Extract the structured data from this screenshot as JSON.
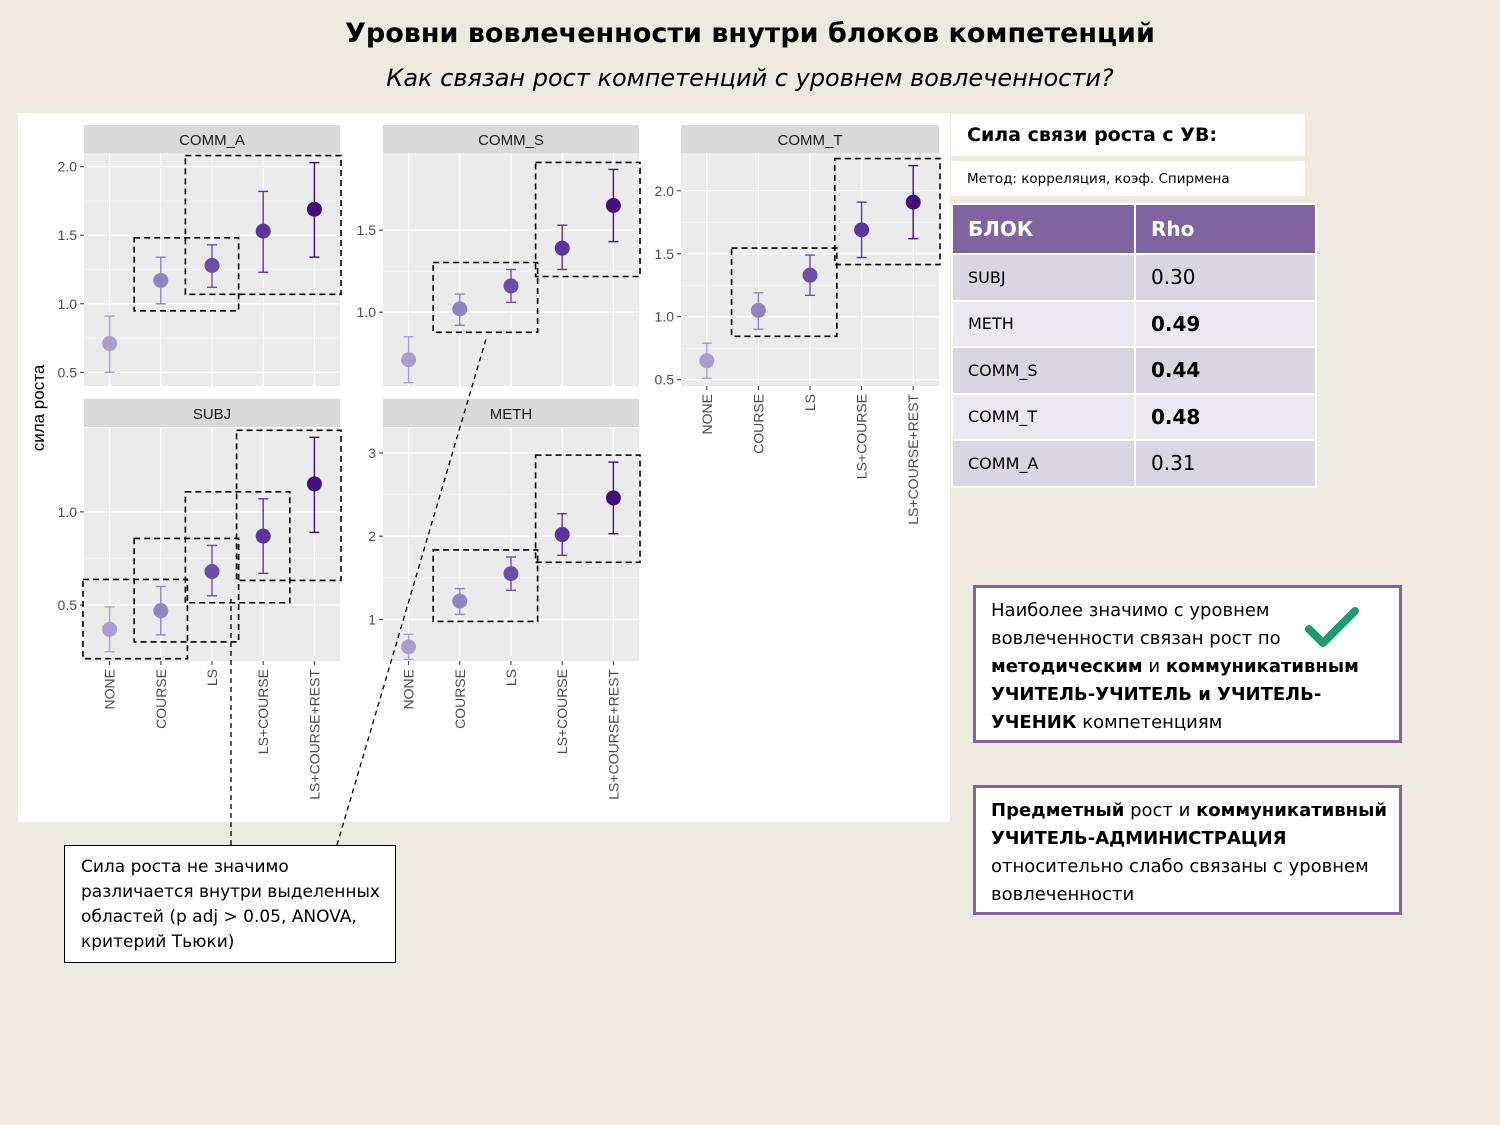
{
  "title": "Уровни вовлеченности внутри блоков компетенций",
  "subtitle": "Как связан рост компетенций с уровнем вовлеченности?",
  "correlation": {
    "title": "Сила связи роста с УВ:",
    "method": "Метод:  корреляция, коэф. Спирмена",
    "table_headers": [
      "БЛОК",
      "Rho"
    ],
    "rows": [
      {
        "block": "SUBJ",
        "rho": "0.30",
        "bold": false
      },
      {
        "block": "METH",
        "rho": "0.49",
        "bold": true
      },
      {
        "block": "COMM_S",
        "rho": "0.44",
        "bold": true
      },
      {
        "block": "COMM_T",
        "rho": "0.48",
        "bold": true
      },
      {
        "block": "COMM_A",
        "rho": "0.31",
        "bold": false
      }
    ]
  },
  "callouts": {
    "first": {
      "t1": "Наиболее значимо с уровнем вовлеченности связан рост по ",
      "b1": "методическим",
      "t2": " и ",
      "b2": "коммуникативным УЧИТЕЛЬ-УЧИТЕЛЬ и УЧИТЕЛЬ-УЧЕНИК",
      "t3": " компетенциям",
      "icon": "check-icon",
      "icon_color": "#1a9c6e"
    },
    "second": {
      "b1": "Предметный",
      "t1": " рост и ",
      "b2": "коммуникативный УЧИТЕЛЬ-АДМИНИСТРАЦИЯ",
      "t2": " относительно слабо связаны с уровнем вовлеченности"
    }
  },
  "note": "Сила роста не значимо различается внутри выделенных областей (p adj > 0.05, ANOVA, критерий Тьюки)",
  "colors": {
    "point_levels": [
      "#a99ecd",
      "#8f83c2",
      "#6a4ea8",
      "#58369f",
      "#45107e"
    ],
    "strip_bg": "#d9d9d9",
    "panel_bg": "#ebebeb",
    "accent": "#8064a2"
  },
  "chart_data": {
    "type": "scatter",
    "subtype": "point with error bars, faceted",
    "ylabel": "сила роста",
    "xlabel": "",
    "categories": [
      "NONE",
      "COURSE",
      "LS",
      "LS+COURSE",
      "LS+COURSE+REST"
    ],
    "grid": true,
    "facets": [
      {
        "name": "COMM_A",
        "ylim": [
          0.4,
          2.1
        ],
        "yticks": [
          0.5,
          1.0,
          1.5,
          2.0
        ],
        "ytick_labels": [
          "0.5",
          "1.0",
          "1.5",
          "2.0"
        ],
        "values": [
          0.71,
          1.17,
          1.28,
          1.53,
          1.69
        ],
        "lower": [
          0.5,
          1.0,
          1.12,
          1.23,
          1.34
        ],
        "upper": [
          0.91,
          1.34,
          1.43,
          1.82,
          2.03
        ],
        "groups": [
          [
            1,
            2
          ],
          [
            2,
            4
          ]
        ]
      },
      {
        "name": "COMM_S",
        "ylim": [
          0.55,
          1.97
        ],
        "yticks": [
          1.0,
          1.5
        ],
        "ytick_labels": [
          "1.0",
          "1.5"
        ],
        "values": [
          0.71,
          1.02,
          1.16,
          1.39,
          1.65
        ],
        "lower": [
          0.57,
          0.92,
          1.06,
          1.26,
          1.43
        ],
        "upper": [
          0.85,
          1.11,
          1.26,
          1.53,
          1.87
        ],
        "groups": [
          [
            1,
            2
          ],
          [
            3,
            4
          ]
        ]
      },
      {
        "name": "COMM_T",
        "ylim": [
          0.45,
          2.3
        ],
        "yticks": [
          0.5,
          1.0,
          1.5,
          2.0
        ],
        "ytick_labels": [
          "0.5",
          "1.0",
          "1.5",
          "2.0"
        ],
        "values": [
          0.65,
          1.05,
          1.33,
          1.69,
          1.91
        ],
        "lower": [
          0.51,
          0.9,
          1.17,
          1.47,
          1.62
        ],
        "upper": [
          0.79,
          1.19,
          1.49,
          1.91,
          2.2
        ],
        "groups": [
          [
            1,
            2
          ],
          [
            3,
            4
          ]
        ]
      },
      {
        "name": "SUBJ",
        "ylim": [
          0.2,
          1.45
        ],
        "yticks": [
          0.5,
          1.0
        ],
        "ytick_labels": [
          "0.5",
          "1.0"
        ],
        "values": [
          0.37,
          0.47,
          0.68,
          0.87,
          1.15
        ],
        "lower": [
          0.25,
          0.34,
          0.55,
          0.67,
          0.89
        ],
        "upper": [
          0.49,
          0.6,
          0.82,
          1.07,
          1.4
        ],
        "groups": [
          [
            0,
            1
          ],
          [
            1,
            2
          ],
          [
            2,
            3
          ],
          [
            3,
            4
          ]
        ]
      },
      {
        "name": "METH",
        "ylim": [
          0.5,
          3.3
        ],
        "yticks": [
          1,
          2,
          3
        ],
        "ytick_labels": [
          "1",
          "2",
          "3"
        ],
        "values": [
          0.67,
          1.22,
          1.55,
          2.02,
          2.46
        ],
        "lower": [
          0.52,
          1.06,
          1.35,
          1.77,
          2.03
        ],
        "upper": [
          0.82,
          1.37,
          1.75,
          2.27,
          2.89
        ],
        "groups": [
          [
            1,
            2
          ],
          [
            3,
            4
          ]
        ]
      }
    ]
  }
}
